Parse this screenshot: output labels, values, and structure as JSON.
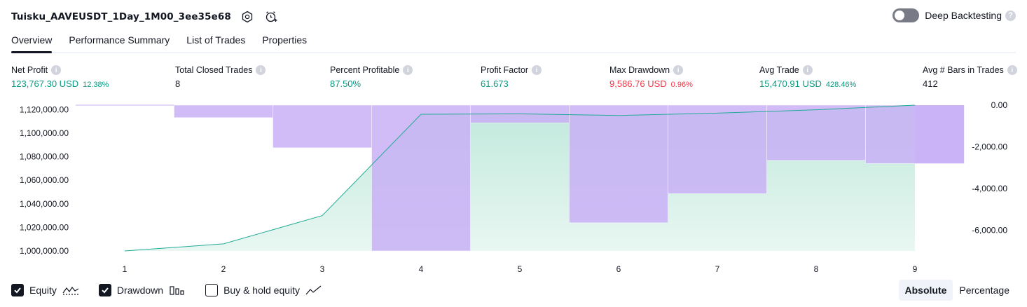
{
  "header": {
    "title": "Tuisku_AAVEUSDT_1Day_1M00_3ee35e68",
    "icons": [
      "settings-icon",
      "alert-clock-icon"
    ]
  },
  "deep_backtesting": {
    "label": "Deep Backtesting",
    "enabled": false,
    "help": "?"
  },
  "tabs": [
    {
      "label": "Overview",
      "active": true
    },
    {
      "label": "Performance Summary",
      "active": false
    },
    {
      "label": "List of Trades",
      "active": false
    },
    {
      "label": "Properties",
      "active": false
    }
  ],
  "metrics": {
    "info": "i",
    "net_profit": {
      "label": "Net Profit",
      "value": "123,767.30 USD",
      "pct": "12.38%"
    },
    "total_closed_trades": {
      "label": "Total Closed Trades",
      "value": "8"
    },
    "percent_profitable": {
      "label": "Percent Profitable",
      "value": "87.50%"
    },
    "profit_factor": {
      "label": "Profit Factor",
      "value": "61.673"
    },
    "max_drawdown": {
      "label": "Max Drawdown",
      "value": "9,586.76 USD",
      "pct": "0.96%"
    },
    "avg_trade": {
      "label": "Avg Trade",
      "value": "15,470.91 USD",
      "pct": "428.46%"
    },
    "avg_bars": {
      "label": "Avg # Bars in Trades",
      "value": "412"
    }
  },
  "colors": {
    "positive": "#089981",
    "negative": "#f23645",
    "equity_line": "#22ab94",
    "equity_fill": "#d4f0e6",
    "drawdown": "#c9b1f7"
  },
  "chart_data": {
    "type": "area",
    "x": [
      1,
      2,
      3,
      4,
      5,
      6,
      7,
      8,
      9
    ],
    "x_tick_labels": [
      "1",
      "2",
      "3",
      "4",
      "5",
      "6",
      "7",
      "8",
      "9"
    ],
    "y_left_tick_labels": [
      "1,120,000.00",
      "1,100,000.00",
      "1,080,000.00",
      "1,060,000.00",
      "1,040,000.00",
      "1,020,000.00",
      "1,000,000.00"
    ],
    "y_left_ticks": [
      1120000,
      1100000,
      1080000,
      1060000,
      1040000,
      1020000,
      1000000
    ],
    "y_right_tick_labels": [
      "0.00",
      "-2,000.00",
      "-4,000.00",
      "-6,000.00"
    ],
    "y_right_ticks": [
      0,
      -2000,
      -4000,
      -6000
    ],
    "y_left_lim": [
      1000000,
      1123767.3
    ],
    "y_right_lim": [
      -7000,
      0
    ],
    "series": [
      {
        "name": "Equity",
        "type": "area",
        "values": [
          1000000,
          1006000,
          1030000,
          1116000,
          1116400,
          1115000,
          1117000,
          1119800,
          1123767.3
        ]
      },
      {
        "name": "Drawdown",
        "type": "bar",
        "values": [
          0,
          -600,
          -2050,
          -7000,
          -850,
          -5650,
          -4250,
          -2650,
          -2800
        ]
      }
    ],
    "grid": false,
    "legend": "bottom-left"
  },
  "legend": {
    "items": [
      {
        "label": "Equity",
        "checked": true,
        "icon": "equity-line-icon"
      },
      {
        "label": "Drawdown",
        "checked": true,
        "icon": "drawdown-bars-icon"
      },
      {
        "label": "Buy & hold equity",
        "checked": false,
        "icon": "buy-hold-line-icon"
      }
    ]
  },
  "mode": {
    "absolute": "Absolute",
    "percentage": "Percentage",
    "selected": "absolute"
  }
}
